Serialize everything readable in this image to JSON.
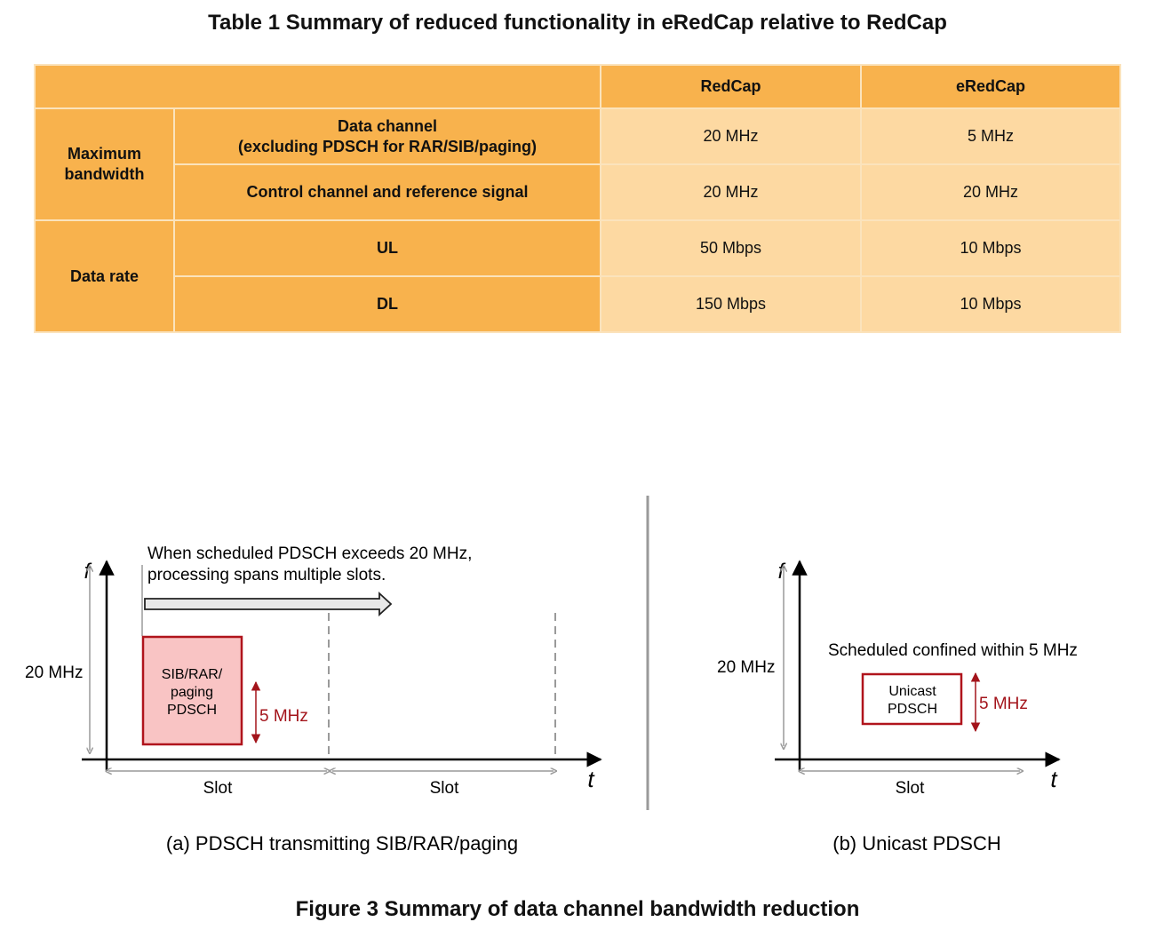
{
  "table_title": "Table 1  Summary of reduced functionality in eRedCap relative to RedCap",
  "table": {
    "col_headers": [
      "RedCap",
      "eRedCap"
    ],
    "group_max_bw": "Maximum bandwidth",
    "group_data_rate": "Data rate",
    "rows": [
      {
        "label_line1": "Data channel",
        "label_line2": "(excluding PDSCH for RAR/SIB/paging)",
        "redcap": "20 MHz",
        "eredcap": "5 MHz"
      },
      {
        "label": "Control channel and reference signal",
        "redcap": "20 MHz",
        "eredcap": "20 MHz"
      },
      {
        "label": "UL",
        "redcap": "50 Mbps",
        "eredcap": "10 Mbps"
      },
      {
        "label": "DL",
        "redcap": "150 Mbps",
        "eredcap": "10 Mbps"
      }
    ]
  },
  "figure": {
    "title": "Figure 3  Summary of data channel bandwidth reduction",
    "a": {
      "caption": "(a) PDSCH transmitting SIB/RAR/paging",
      "note_line1": "When scheduled PDSCH exceeds 20 MHz,",
      "note_line2": "processing spans multiple slots.",
      "f_label": "f",
      "t_label": "t",
      "bw_label": "20 MHz",
      "box_line1": "SIB/RAR/",
      "box_line2": "paging",
      "box_line3": "PDSCH",
      "box_bw": "5 MHz",
      "slot1": "Slot",
      "slot2": "Slot"
    },
    "b": {
      "caption": "(b) Unicast PDSCH",
      "note": "Scheduled confined within 5 MHz",
      "f_label": "f",
      "t_label": "t",
      "bw_label": "20 MHz",
      "box_line1": "Unicast",
      "box_line2": "PDSCH",
      "box_bw": "5 MHz",
      "slot": "Slot"
    },
    "colors": {
      "table_header": "#f8b24d",
      "table_value": "#fdd9a2",
      "box_fill": "#f9c4c4",
      "box_border": "#b0141c",
      "dark_red": "#a3141b"
    }
  }
}
